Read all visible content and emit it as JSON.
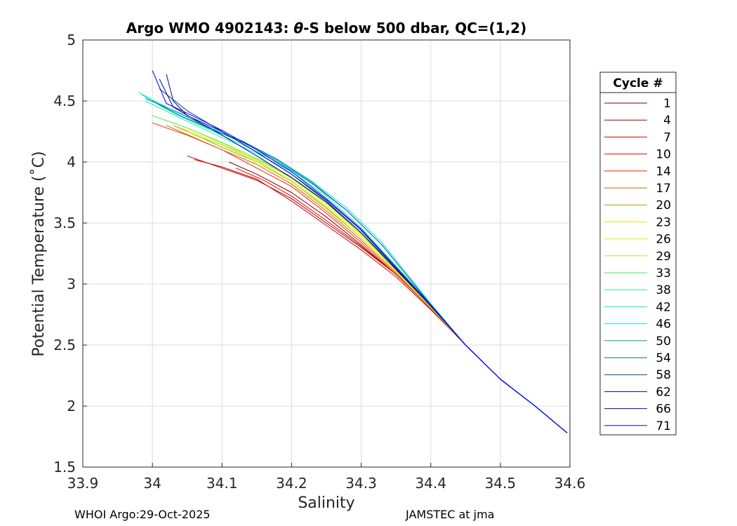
{
  "chart_data": {
    "type": "line",
    "title_prefix": "Argo WMO 4902143: ",
    "title_theta": "θ",
    "title_suffix": "-S below 500 dbar,  QC=(1,2)",
    "xlabel": "Salinity",
    "ylabel": "Potential Temperature (˚C)",
    "xlim": [
      33.9,
      34.6
    ],
    "ylim": [
      1.5,
      5
    ],
    "xticks": [
      "33.9",
      "34",
      "34.1",
      "34.2",
      "34.3",
      "34.4",
      "34.5",
      "34.6"
    ],
    "yticks": [
      "1.5",
      "2",
      "2.5",
      "3",
      "3.5",
      "4",
      "4.5",
      "5"
    ],
    "grid": true,
    "legend": {
      "title": "Cycle #",
      "placement": "right-outside",
      "entries": [
        {
          "label": "1",
          "color": "#7f0000"
        },
        {
          "label": "4",
          "color": "#a80000"
        },
        {
          "label": "7",
          "color": "#d50000"
        },
        {
          "label": "10",
          "color": "#f00000"
        },
        {
          "label": "14",
          "color": "#ff2000"
        },
        {
          "label": "17",
          "color": "#c06a00"
        },
        {
          "label": "20",
          "color": "#b09a00"
        },
        {
          "label": "23",
          "color": "#e6e600"
        },
        {
          "label": "26",
          "color": "#d8f000"
        },
        {
          "label": "29",
          "color": "#a0f020"
        },
        {
          "label": "33",
          "color": "#50e650"
        },
        {
          "label": "38",
          "color": "#20f0a0"
        },
        {
          "label": "42",
          "color": "#00f0d0"
        },
        {
          "label": "46",
          "color": "#00e0f0"
        },
        {
          "label": "50",
          "color": "#009aa0"
        },
        {
          "label": "54",
          "color": "#006a8a"
        },
        {
          "label": "58",
          "color": "#003f70"
        },
        {
          "label": "62",
          "color": "#00007f"
        },
        {
          "label": "66",
          "color": "#0000c0"
        },
        {
          "label": "71",
          "color": "#0000ff"
        }
      ]
    },
    "series": [
      {
        "name": "1",
        "color": "#7f0000",
        "x": [
          34.11,
          34.15,
          34.2,
          34.25,
          34.3,
          34.35,
          34.4,
          34.45,
          34.5,
          34.55,
          34.596
        ],
        "y": [
          4.0,
          3.9,
          3.75,
          3.55,
          3.32,
          3.08,
          2.8,
          2.5,
          2.22,
          2.0,
          1.78
        ]
      },
      {
        "name": "4",
        "color": "#a80000",
        "x": [
          34.05,
          34.1,
          34.15,
          34.2,
          34.25,
          34.3,
          34.35,
          34.4,
          34.45,
          34.5,
          34.55,
          34.596
        ],
        "y": [
          4.05,
          3.95,
          3.85,
          3.7,
          3.5,
          3.3,
          3.08,
          2.8,
          2.5,
          2.22,
          2.0,
          1.78
        ]
      },
      {
        "name": "7",
        "color": "#d50000",
        "x": [
          34.06,
          34.1,
          34.15,
          34.2,
          34.25,
          34.3,
          34.35,
          34.4,
          34.45,
          34.5,
          34.55,
          34.596
        ],
        "y": [
          4.02,
          3.96,
          3.86,
          3.68,
          3.48,
          3.28,
          3.06,
          2.79,
          2.5,
          2.22,
          2.0,
          1.78
        ]
      },
      {
        "name": "10",
        "color": "#f00000",
        "x": [
          34.12,
          34.16,
          34.2,
          34.25,
          34.3,
          34.35,
          34.4,
          34.45,
          34.5,
          34.55,
          34.596
        ],
        "y": [
          3.95,
          3.85,
          3.72,
          3.52,
          3.31,
          3.08,
          2.8,
          2.5,
          2.22,
          2.0,
          1.78
        ]
      },
      {
        "name": "14",
        "color": "#ff2000",
        "x": [
          34.0,
          34.05,
          34.1,
          34.15,
          34.2,
          34.25,
          34.3,
          34.35,
          34.4,
          34.45,
          34.5,
          34.55,
          34.596
        ],
        "y": [
          4.32,
          4.22,
          4.1,
          3.95,
          3.8,
          3.58,
          3.34,
          3.08,
          2.8,
          2.5,
          2.22,
          2.0,
          1.78
        ]
      },
      {
        "name": "17",
        "color": "#c06a00",
        "x": [
          34.02,
          34.06,
          34.1,
          34.15,
          34.2,
          34.25,
          34.3,
          34.35,
          34.4,
          34.45,
          34.5,
          34.55,
          34.596
        ],
        "y": [
          4.3,
          4.2,
          4.1,
          3.98,
          3.82,
          3.6,
          3.36,
          3.09,
          2.8,
          2.5,
          2.22,
          2.0,
          1.78
        ]
      },
      {
        "name": "20",
        "color": "#b09a00",
        "x": [
          34.03,
          34.07,
          34.1,
          34.15,
          34.2,
          34.25,
          34.3,
          34.35,
          34.4,
          34.45,
          34.5,
          34.55,
          34.596
        ],
        "y": [
          4.3,
          4.2,
          4.12,
          4.0,
          3.84,
          3.62,
          3.38,
          3.1,
          2.81,
          2.5,
          2.22,
          2.0,
          1.78
        ]
      },
      {
        "name": "23",
        "color": "#e6e600",
        "x": [
          34.04,
          34.08,
          34.12,
          34.16,
          34.2,
          34.25,
          34.3,
          34.35,
          34.4,
          34.45,
          34.5,
          34.55,
          34.596
        ],
        "y": [
          4.28,
          4.2,
          4.1,
          3.98,
          3.84,
          3.63,
          3.38,
          3.1,
          2.81,
          2.5,
          2.22,
          2.0,
          1.78
        ]
      },
      {
        "name": "26",
        "color": "#d8f000",
        "x": [
          34.05,
          34.1,
          34.15,
          34.2,
          34.25,
          34.3,
          34.35,
          34.4,
          34.45,
          34.5,
          34.55,
          34.596
        ],
        "y": [
          4.25,
          4.14,
          4.0,
          3.85,
          3.64,
          3.4,
          3.11,
          2.81,
          2.5,
          2.22,
          2.0,
          1.78
        ]
      },
      {
        "name": "29",
        "color": "#a0f020",
        "x": [
          34.06,
          34.1,
          34.15,
          34.2,
          34.25,
          34.3,
          34.35,
          34.4,
          34.45,
          34.5,
          34.55,
          34.596
        ],
        "y": [
          4.22,
          4.14,
          4.02,
          3.87,
          3.66,
          3.41,
          3.12,
          2.82,
          2.5,
          2.22,
          2.0,
          1.78
        ]
      },
      {
        "name": "33",
        "color": "#50e650",
        "x": [
          34.0,
          34.05,
          34.1,
          34.15,
          34.2,
          34.25,
          34.3,
          34.35,
          34.4,
          34.45,
          34.5,
          34.55,
          34.596
        ],
        "y": [
          4.38,
          4.28,
          4.16,
          4.03,
          3.88,
          3.67,
          3.42,
          3.13,
          2.82,
          2.5,
          2.22,
          2.0,
          1.78
        ]
      },
      {
        "name": "38",
        "color": "#20f0a0",
        "x": [
          33.99,
          34.04,
          34.1,
          34.15,
          34.2,
          34.25,
          34.3,
          34.35,
          34.4,
          34.45,
          34.5,
          34.55,
          34.596
        ],
        "y": [
          4.5,
          4.36,
          4.2,
          4.07,
          3.92,
          3.72,
          3.46,
          3.15,
          2.83,
          2.5,
          2.22,
          2.0,
          1.78
        ]
      },
      {
        "name": "42",
        "color": "#00f0d0",
        "x": [
          33.985,
          34.03,
          34.08,
          34.13,
          34.18,
          34.23,
          34.28,
          34.33,
          34.4,
          34.45,
          34.5,
          34.55,
          34.596
        ],
        "y": [
          4.55,
          4.4,
          4.27,
          4.14,
          4.0,
          3.82,
          3.6,
          3.32,
          2.83,
          2.5,
          2.22,
          2.0,
          1.78
        ]
      },
      {
        "name": "46",
        "color": "#00e0f0",
        "x": [
          33.98,
          34.03,
          34.08,
          34.13,
          34.18,
          34.23,
          34.28,
          34.33,
          34.4,
          34.45,
          34.5,
          34.55,
          34.596
        ],
        "y": [
          4.57,
          4.42,
          4.29,
          4.16,
          4.02,
          3.84,
          3.62,
          3.34,
          2.84,
          2.5,
          2.22,
          2.0,
          1.78
        ]
      },
      {
        "name": "50",
        "color": "#009aa0",
        "x": [
          33.99,
          34.04,
          34.08,
          34.13,
          34.18,
          34.23,
          34.28,
          34.33,
          34.4,
          34.45,
          34.5,
          34.55,
          34.596
        ],
        "y": [
          4.52,
          4.4,
          4.28,
          4.16,
          4.01,
          3.82,
          3.6,
          3.32,
          2.83,
          2.5,
          2.22,
          2.0,
          1.78
        ]
      },
      {
        "name": "54",
        "color": "#006a8a",
        "x": [
          34.0,
          34.04,
          34.08,
          34.13,
          34.18,
          34.23,
          34.28,
          34.33,
          34.4,
          34.45,
          34.5,
          34.55,
          34.596
        ],
        "y": [
          4.5,
          4.38,
          4.28,
          4.17,
          4.02,
          3.83,
          3.6,
          3.32,
          2.83,
          2.5,
          2.22,
          2.0,
          1.78
        ]
      },
      {
        "name": "58",
        "color": "#003f70",
        "x": [
          34.01,
          34.05,
          34.1,
          34.15,
          34.2,
          34.25,
          34.3,
          34.35,
          34.4,
          34.45,
          34.5,
          34.55,
          34.596
        ],
        "y": [
          4.6,
          4.42,
          4.25,
          4.08,
          3.9,
          3.68,
          3.42,
          3.12,
          2.82,
          2.5,
          2.22,
          2.0,
          1.78
        ]
      },
      {
        "name": "62",
        "color": "#00007f",
        "x": [
          34.01,
          34.03,
          34.06,
          34.1,
          34.15,
          34.2,
          34.25,
          34.3,
          34.35,
          34.4,
          34.45,
          34.5,
          34.55,
          34.596
        ],
        "y": [
          4.68,
          4.45,
          4.35,
          4.22,
          4.05,
          3.87,
          3.67,
          3.42,
          3.12,
          2.82,
          2.5,
          2.22,
          2.0,
          1.78
        ]
      },
      {
        "name": "66",
        "color": "#0000c0",
        "x": [
          34.02,
          34.03,
          34.05,
          34.1,
          34.15,
          34.2,
          34.25,
          34.3,
          34.35,
          34.4,
          34.45,
          34.5,
          34.55,
          34.596
        ],
        "y": [
          4.72,
          4.5,
          4.38,
          4.25,
          4.08,
          3.9,
          3.69,
          3.44,
          3.13,
          2.82,
          2.5,
          2.22,
          2.0,
          1.78
        ]
      },
      {
        "name": "71",
        "color": "#0000ff",
        "x": [
          34.0,
          34.02,
          34.05,
          34.1,
          34.15,
          34.2,
          34.25,
          34.3,
          34.35,
          34.4,
          34.45,
          34.5,
          34.55,
          34.596
        ],
        "y": [
          4.75,
          4.48,
          4.4,
          4.26,
          4.1,
          3.92,
          3.7,
          3.45,
          3.14,
          2.83,
          2.5,
          2.22,
          2.0,
          1.78
        ]
      }
    ]
  },
  "footer": {
    "left": "WHOI Argo:29-Oct-2025",
    "right": "JAMSTEC at jma"
  }
}
